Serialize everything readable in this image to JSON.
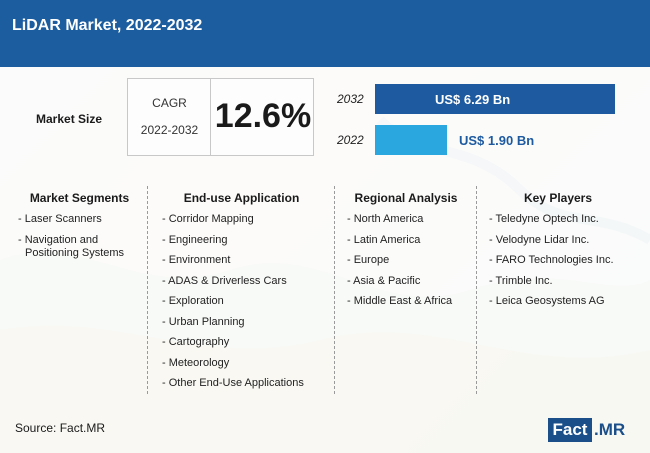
{
  "header": {
    "title": "LiDAR Market, 2022-2032"
  },
  "market_size_label": "Market Size",
  "cagr": {
    "label": "CAGR",
    "period": "2022-2032",
    "value": "12.6%"
  },
  "colors": {
    "header": "#1c5d9f",
    "bar_2032": "#1e5aa0",
    "bar_2022": "#2aa7df"
  },
  "chart_data": {
    "type": "bar",
    "orientation": "horizontal",
    "categories": [
      "2032",
      "2022"
    ],
    "values": [
      6.29,
      1.9
    ],
    "value_labels": [
      "US$ 6.29 Bn",
      "US$ 1.90 Bn"
    ],
    "unit": "US$ Bn",
    "title": "",
    "xlabel": "",
    "ylabel": "",
    "grid": false
  },
  "columns": [
    {
      "title": "Market Segments",
      "items": [
        "- Laser Scanners",
        "- Navigation and\nPositioning Systems"
      ]
    },
    {
      "title": "End-use Application",
      "items": [
        "- Corridor Mapping",
        "- Engineering",
        "- Environment",
        "- ADAS & Driverless Cars",
        "- Exploration",
        "- Urban Planning",
        "- Cartography",
        "- Meteorology",
        "- Other End-Use Applications"
      ]
    },
    {
      "title": "Regional Analysis",
      "items": [
        "- North America",
        "- Latin America",
        "- Europe",
        "- Asia & Pacific",
        "- Middle East & Africa"
      ]
    },
    {
      "title": "Key Players",
      "items": [
        "- Teledyne Optech Inc.",
        "- Velodyne Lidar Inc.",
        "- FARO Technologies Inc.",
        "- Trimble Inc.",
        "- Leica Geosystems AG"
      ]
    }
  ],
  "source": "Source: Fact.MR",
  "logo": {
    "part1": "Fact",
    "part2": ".MR"
  }
}
